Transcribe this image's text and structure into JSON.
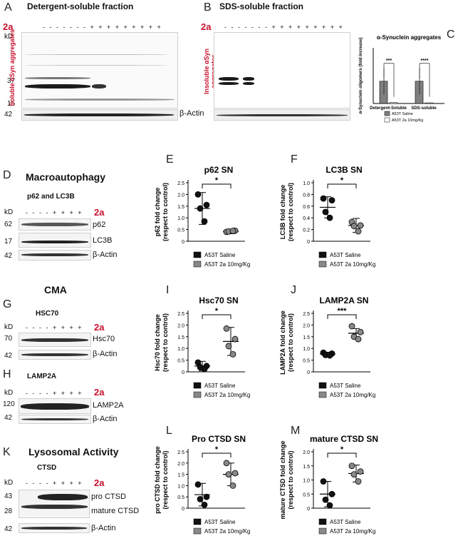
{
  "panels": {
    "A": {
      "letter": "A",
      "title": "Detergent-soluble fraction",
      "ylab": "Soluble αSyn aggregates",
      "kd": "kD",
      "m1": "37",
      "m2": "15",
      "m3": "42",
      "actin": "β-Actin",
      "cmpd": "2a",
      "signs": "- - - - - - - + + + + + + + + +"
    },
    "B": {
      "letter": "B",
      "title": "SDS-soluble fraction",
      "ylab": "Insoluble αSyn aggregates",
      "cmpd": "2a",
      "signs": "- - - - - - - + + + + + + + + +"
    },
    "C": {
      "letter": "C"
    },
    "D": {
      "letter": "D",
      "heading": "Macroautophagy",
      "sub": "p62 and LC3B",
      "kd": "kD",
      "cmpd": "2a",
      "m1": "62",
      "m2": "17",
      "m3": "42",
      "b1": "p62",
      "b2": "LC3B",
      "b3": "β-Actin",
      "signs": "- - - - + + + +"
    },
    "G": {
      "letter": "G",
      "heading": "CMA",
      "sub": "HSC70",
      "kd": "kD",
      "cmpd": "2a",
      "m1": "70",
      "m2": "42",
      "b1": "Hsc70",
      "b2": "β-Actin",
      "signs": "- - - - + + + +"
    },
    "H": {
      "letter": "H",
      "sub": "LAMP2A",
      "kd": "kD",
      "cmpd": "2a",
      "m1": "120",
      "m2": "42",
      "b1": "LAMP2A",
      "b2": "β-Actin",
      "signs": "- - - - + + + +"
    },
    "K": {
      "letter": "K",
      "heading": "Lysosomal Activity",
      "sub": "CTSD",
      "kd": "kD",
      "cmpd": "2a",
      "m1": "43",
      "m2": "28",
      "m3": "42",
      "b1": "pro CTSD",
      "b2": "mature CTSD",
      "b3": "β-Actin",
      "signs": "- - - - + + + +"
    }
  },
  "chart_data": [
    {
      "panel": "C",
      "type": "bar",
      "title": "α-Synuclein aggregates",
      "ylabel": "α-Synuclein oligomers (fold increase)",
      "categories": [
        "Detergent-Soluble",
        "SDS-soluble"
      ],
      "ylim": [
        0,
        2.5
      ],
      "series": [
        {
          "name": "A53T Saline",
          "values": [
            1.0,
            1.0
          ],
          "color": "#808080"
        },
        {
          "name": "A53T 2a 10mg/Kg",
          "values": [
            0.04,
            0.03
          ],
          "color": "#ffffff"
        }
      ],
      "sig": [
        "***",
        "****"
      ]
    },
    {
      "panel": "E",
      "type": "scatter",
      "title": "p62 SN",
      "ylabel": "p62 fold change\n(respect to control)",
      "ylim": [
        0,
        2.5
      ],
      "ticks": [
        0,
        0.5,
        1.0,
        1.5,
        2.0,
        2.5
      ],
      "sig": "*",
      "groups": [
        {
          "name": "A53T Saline",
          "color": "#111111",
          "points": [
            2.0,
            1.55,
            1.4,
            0.85
          ],
          "mean": 1.4,
          "sd": 0.68
        },
        {
          "name": "A53T 2a 10mg/Kg",
          "color": "#888888",
          "points": [
            0.4,
            0.45,
            0.42,
            0.44
          ],
          "mean": 0.42,
          "sd": 0.1
        }
      ]
    },
    {
      "panel": "F",
      "type": "scatter",
      "title": "LC3B SN",
      "ylabel": "LC3B fold change\n(respect to control)",
      "ylim": [
        0,
        1.0
      ],
      "ticks": [
        0,
        0.2,
        0.4,
        0.6,
        0.8,
        1.0
      ],
      "sig": "*",
      "groups": [
        {
          "name": "A53T Saline",
          "color": "#111111",
          "points": [
            0.73,
            0.7,
            0.5,
            0.4
          ],
          "mean": 0.58,
          "sd": 0.18
        },
        {
          "name": "A53T 2a 10mg/Kg",
          "color": "#888888",
          "points": [
            0.33,
            0.27,
            0.26,
            0.17
          ],
          "mean": 0.27,
          "sd": 0.12
        }
      ]
    },
    {
      "panel": "I",
      "type": "scatter",
      "title": "Hsc70 SN",
      "ylabel": "Hsc70 fold change\n(respect to control)",
      "ylim": [
        0,
        2.5
      ],
      "ticks": [
        0,
        0.5,
        1.0,
        1.5,
        2.0,
        2.5
      ],
      "sig": "*",
      "groups": [
        {
          "name": "A53T Saline",
          "color": "#111111",
          "points": [
            0.4,
            0.25,
            0.2,
            0.12
          ],
          "mean": 0.25,
          "sd": 0.2
        },
        {
          "name": "A53T 2a 10mg/Kg",
          "color": "#888888",
          "points": [
            1.85,
            1.4,
            1.1,
            0.75
          ],
          "mean": 1.3,
          "sd": 0.6
        }
      ]
    },
    {
      "panel": "J",
      "type": "scatter",
      "title": "LAMP2A SN",
      "ylabel": "LAMP2A fold change\n(respect to control)",
      "ylim": [
        0,
        2.5
      ],
      "ticks": [
        0,
        0.5,
        1.0,
        1.5,
        2.0,
        2.5
      ],
      "sig": "***",
      "groups": [
        {
          "name": "A53T Saline",
          "color": "#111111",
          "points": [
            0.82,
            0.78,
            0.72,
            0.7
          ],
          "mean": 0.76,
          "sd": 0.08
        },
        {
          "name": "A53T 2a 10mg/Kg",
          "color": "#888888",
          "points": [
            1.95,
            1.7,
            1.5,
            1.4
          ],
          "mean": 1.65,
          "sd": 0.2
        }
      ]
    },
    {
      "panel": "L",
      "type": "scatter",
      "title": "Pro CTSD SN",
      "ylabel": "pro CTSD fold change\n(respect to control)",
      "ylim": [
        0,
        2.5
      ],
      "ticks": [
        0,
        0.5,
        1.0,
        1.5,
        2.0,
        2.5
      ],
      "sig": "*",
      "groups": [
        {
          "name": "A53T Saline",
          "color": "#111111",
          "points": [
            1.05,
            0.5,
            0.4,
            0.15
          ],
          "mean": 0.6,
          "sd": 0.5
        },
        {
          "name": "A53T 2a 10mg/Kg",
          "color": "#888888",
          "points": [
            2.0,
            1.55,
            1.5,
            1.0
          ],
          "mean": 1.5,
          "sd": 0.5
        }
      ]
    },
    {
      "panel": "M",
      "type": "scatter",
      "title": "mature CTSD SN",
      "ylabel": "mature CTSD fold change\n(respect to control)",
      "ylim": [
        0,
        2.0
      ],
      "ticks": [
        0,
        0.5,
        1.0,
        1.5,
        2.0
      ],
      "sig": "*",
      "groups": [
        {
          "name": "A53T Saline",
          "color": "#111111",
          "points": [
            0.95,
            0.5,
            0.3,
            0.1
          ],
          "mean": 0.5,
          "sd": 0.45
        },
        {
          "name": "A53T 2a 10mg/Kg",
          "color": "#888888",
          "points": [
            1.5,
            1.3,
            1.2,
            0.95
          ],
          "mean": 1.23,
          "sd": 0.3
        }
      ]
    }
  ]
}
